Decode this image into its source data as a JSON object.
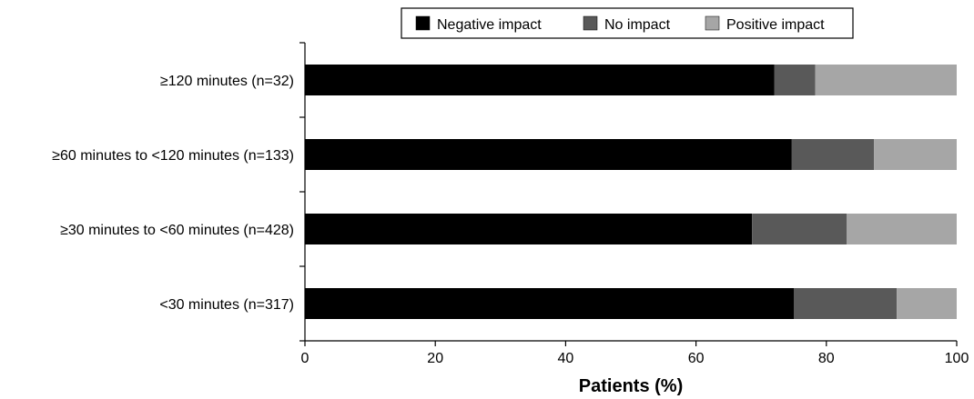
{
  "chart_data": {
    "type": "bar",
    "orientation": "horizontal",
    "stacked": true,
    "categories": [
      "≥120 minutes (n=32)",
      "≥60 minutes to <120 minutes (n=133)",
      "≥30 minutes to <60 minutes (n=428)",
      "<30 minutes (n=317)"
    ],
    "series": [
      {
        "name": "Negative impact",
        "color": "#000000",
        "values": [
          72.0,
          74.7,
          68.6,
          75.0
        ]
      },
      {
        "name": "No impact",
        "color": "#595959",
        "values": [
          6.3,
          12.6,
          14.5,
          15.8
        ]
      },
      {
        "name": "Positive impact",
        "color": "#a6a6a6",
        "values": [
          21.7,
          12.7,
          16.9,
          9.2
        ]
      }
    ],
    "xlabel": "Patients (%)",
    "ylabel": "",
    "xlim": [
      0,
      100
    ],
    "xticks": [
      0,
      20,
      40,
      60,
      80,
      100
    ],
    "legend_position": "top-right",
    "grid": false
  }
}
